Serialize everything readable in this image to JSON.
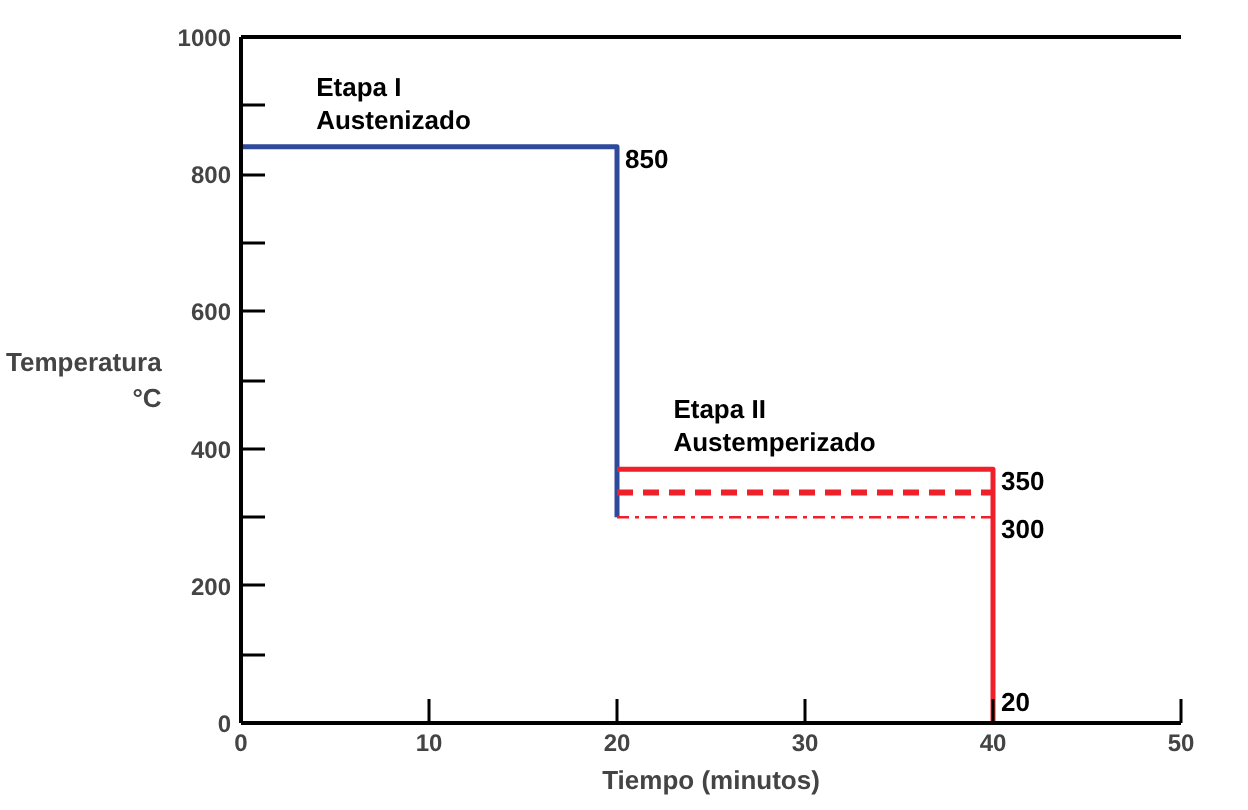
{
  "chart_data": {
    "type": "line",
    "xlabel": "Tiempo (minutos)",
    "ylabel": "Temperatura\n°C",
    "xlim": [
      0,
      50
    ],
    "xticks": [
      0,
      10,
      20,
      30,
      40,
      50
    ],
    "ylim": [
      0,
      1000
    ],
    "yticks": [
      0,
      {
        "value": 100,
        "label": null
      },
      200,
      {
        "value": 300,
        "label": null
      },
      400,
      {
        "value": 500,
        "label": null
      },
      600,
      {
        "value": 700,
        "label": null
      },
      800,
      {
        "value": 900,
        "label": null
      },
      1000
    ],
    "grid": false,
    "marker": "none",
    "series": [
      {
        "color": "#2e4a9a",
        "x": [
          0,
          20,
          20
        ],
        "values": [
          840,
          840,
          300
        ],
        "line_style": "solid"
      },
      {
        "color": "#f0202a",
        "x": [
          20,
          40,
          40
        ],
        "values": [
          370,
          370,
          0
        ],
        "line_style": "solid"
      },
      {
        "color": "#f0202a",
        "x": [
          20,
          40
        ],
        "values": [
          336,
          336
        ],
        "line_style": "dashed"
      },
      {
        "color": "#f0202a",
        "x": [
          20,
          40
        ],
        "values": [
          300,
          300
        ],
        "line_style": "dashdot"
      }
    ],
    "annotations": [
      {
        "text": "Etapa I\nAustenizado",
        "x": 4,
        "y": 840
      },
      {
        "text": "Etapa II\nAustemperizado",
        "x": 23,
        "y": 370
      },
      {
        "text": "850",
        "x": 20,
        "y": 840
      },
      {
        "text": "350",
        "x": 40,
        "y": 370
      },
      {
        "text": "300",
        "x": 40,
        "y": 300
      },
      {
        "text": "20",
        "x": 40,
        "y": 0
      }
    ]
  }
}
